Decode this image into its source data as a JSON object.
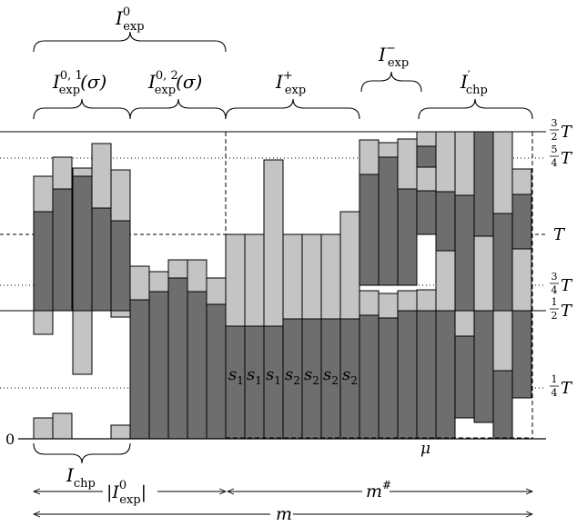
{
  "brace_labels": {
    "i_exp0": {
      "base": "I",
      "sub": "exp",
      "sup": "0"
    },
    "i_exp01": {
      "base": "I",
      "sub": "exp",
      "sup": "0, 1",
      "arg": "(σ)"
    },
    "i_exp02": {
      "base": "I",
      "sub": "exp",
      "sup": "0, 2",
      "arg": "(σ)"
    },
    "i_exp_plus": {
      "base": "I",
      "sub": "exp",
      "sup": "+"
    },
    "i_exp_minus": {
      "base": "I",
      "sub": "exp",
      "sup": "−"
    },
    "i_chp_prime": {
      "base": "I",
      "sub": "chp",
      "sup": "′"
    },
    "i_chp": {
      "base": "I",
      "sub": "chp"
    }
  },
  "level_labels": {
    "three_halves": {
      "num": "3",
      "den": "2",
      "var": "T"
    },
    "five_quarters": {
      "num": "5",
      "den": "4",
      "var": "T"
    },
    "one": {
      "var": "T"
    },
    "three_quarters": {
      "num": "3",
      "den": "4",
      "var": "T"
    },
    "one_half": {
      "num": "1",
      "den": "2",
      "var": "T"
    },
    "one_quarter": {
      "num": "1",
      "den": "4",
      "var": "T"
    },
    "zero": "0"
  },
  "machine_labels": [
    "s",
    "s",
    "s",
    "s",
    "s",
    "s",
    "s"
  ],
  "machine_label_subs": [
    "1",
    "1",
    "1",
    "2",
    "2",
    "2",
    "2"
  ],
  "mu": "μ",
  "measures": {
    "abs_i_exp0": {
      "base": "|I",
      "sub": "exp",
      "sup": "0",
      "close": "|"
    },
    "m_sharp": {
      "base": "m",
      "sup": "#"
    },
    "m": "m"
  },
  "colors": {
    "dark_job": "#6e6e6e",
    "light_job": "#c4c4c4",
    "line": "#000000"
  }
}
